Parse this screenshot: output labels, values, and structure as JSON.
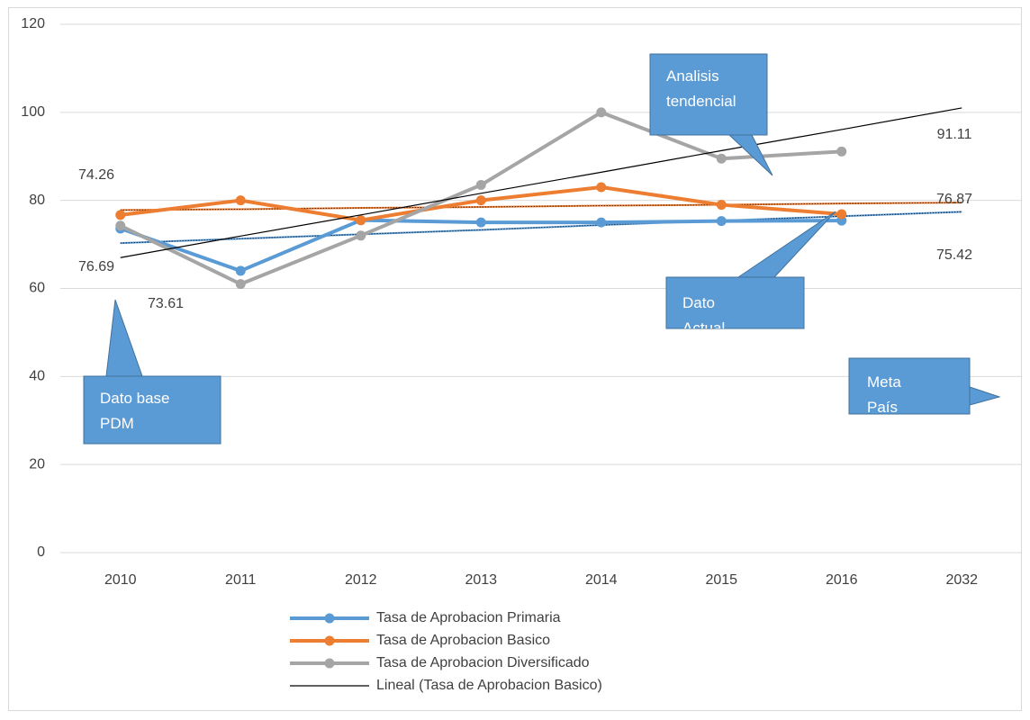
{
  "chart_data": {
    "type": "line",
    "categories": [
      "2010",
      "2011",
      "2012",
      "2013",
      "2014",
      "2015",
      "2016",
      "2032"
    ],
    "ylim": [
      0,
      120
    ],
    "yticks": [
      0,
      20,
      40,
      60,
      80,
      100,
      120
    ],
    "grid": true,
    "series": [
      {
        "name": "Tasa  de Aprobacion Primaria",
        "color": "#5b9bd5",
        "values": [
          73.61,
          64,
          75.5,
          75,
          75,
          75.3,
          75.42,
          null
        ],
        "value_labels": [
          "73.61",
          null,
          null,
          null,
          null,
          null,
          "75.42",
          null
        ]
      },
      {
        "name": "Tasa  de Aprobacion Basico",
        "color": "#ed7d31",
        "values": [
          76.69,
          80,
          75.5,
          80,
          83,
          79,
          76.87,
          null
        ],
        "value_labels": [
          "76.69",
          null,
          null,
          null,
          null,
          null,
          "76.87",
          null
        ]
      },
      {
        "name": "Tasa  de Aprobacion Diversificado",
        "color": "#a5a5a5",
        "values": [
          74.26,
          61,
          72,
          83.5,
          100,
          89.5,
          91.11,
          null
        ],
        "value_labels": [
          "74.26",
          null,
          null,
          null,
          null,
          null,
          "91.11",
          null
        ]
      },
      {
        "name": "Lineal (Tasa  de Aprobacion Basico)",
        "color": "#000000",
        "trend": true,
        "values": [
          67,
          71.9,
          76.7,
          81.6,
          86.4,
          91.3,
          96.1,
          101
        ]
      }
    ],
    "trendlines": [
      {
        "color": "#5b9bd5",
        "values": [
          70.3,
          71.3,
          72.3,
          73.3,
          74.4,
          75.4,
          76.4,
          77.4
        ]
      },
      {
        "color": "#ed7d31",
        "values": [
          77.8,
          78.0,
          78.3,
          78.5,
          78.8,
          79.0,
          79.3,
          79.5
        ]
      }
    ],
    "callouts": [
      {
        "lines": [
          "Analisis",
          "tendencial"
        ]
      },
      {
        "lines": [
          "Dato",
          "Actual"
        ]
      },
      {
        "lines": [
          "Dato base",
          "PDM"
        ]
      },
      {
        "lines": [
          "Meta",
          "País"
        ]
      }
    ]
  }
}
